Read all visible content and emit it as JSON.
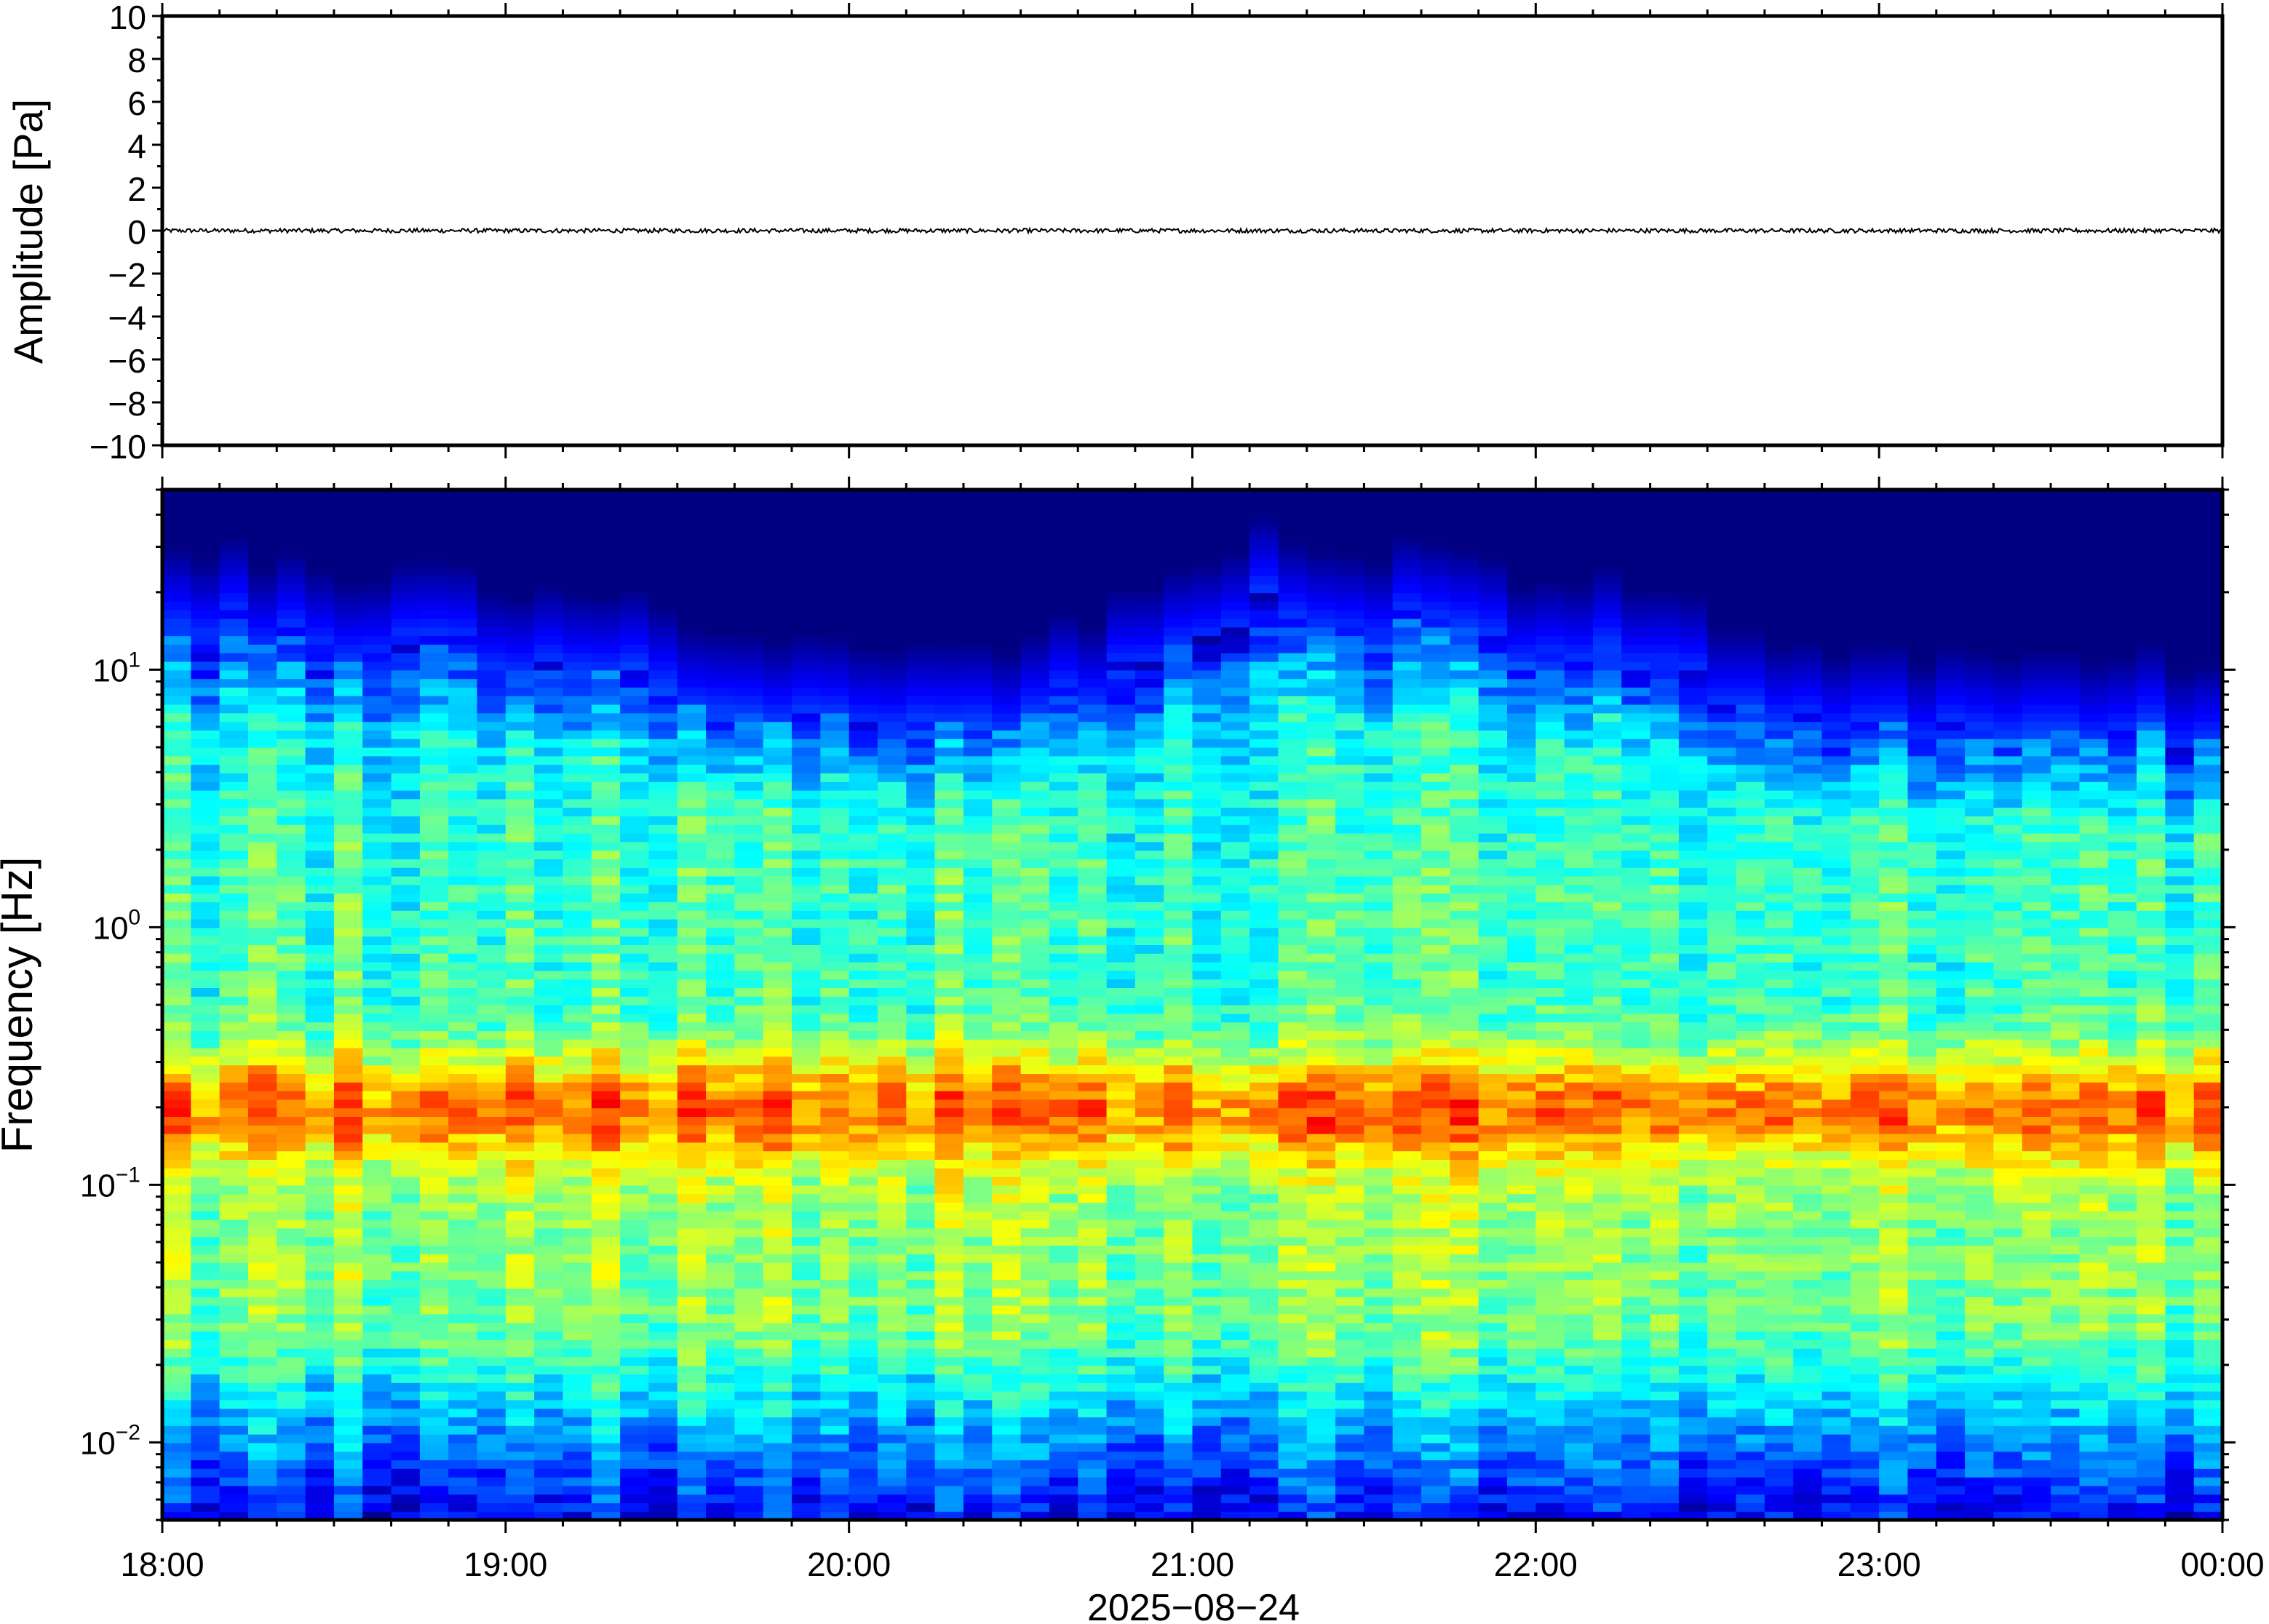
{
  "chart_data": [
    {
      "type": "line",
      "title": "",
      "ylabel": "Amplitude [Pa]",
      "xlabel": "",
      "ylim": [
        -10,
        10
      ],
      "yticks": [
        -10,
        -8,
        -6,
        -4,
        -2,
        0,
        2,
        4,
        6,
        8,
        10
      ],
      "ytick_labels": [
        "−10",
        "−8",
        "−6",
        "−4",
        "−2",
        "0",
        "2",
        "4",
        "6",
        "8",
        "10"
      ],
      "xlim": [
        "18:00",
        "00:00"
      ],
      "series": [
        {
          "values_description_free": true,
          "x_range": [
            "18:00",
            "00:00"
          ],
          "y_approx": 0,
          "y_noise_amplitude": 0.1
        }
      ],
      "line_color": "#000000",
      "grid": false
    },
    {
      "type": "heatmap",
      "title": "",
      "ylabel": "Frequency [Hz]",
      "xlabel": "2025−08−24",
      "yscale": "log",
      "ylim": [
        0.005,
        50
      ],
      "ytick_labels": [
        {
          "value": 0.01,
          "base": "10",
          "exp": "−2"
        },
        {
          "value": 0.1,
          "base": "10",
          "exp": "−1"
        },
        {
          "value": 1,
          "base": "10",
          "exp": "0"
        },
        {
          "value": 10,
          "base": "10",
          "exp": "1"
        }
      ],
      "xticks": [
        "18:00",
        "19:00",
        "20:00",
        "21:00",
        "22:00",
        "23:00",
        "00:00"
      ],
      "colormap": "jet",
      "dominant_band_hz": [
        0.15,
        0.3
      ],
      "grid": false
    }
  ],
  "colors": {
    "frame": "#000000",
    "background": "#ffffff",
    "colormap_low": "#0d0a6e",
    "colormap_high": "#f07a3a"
  }
}
